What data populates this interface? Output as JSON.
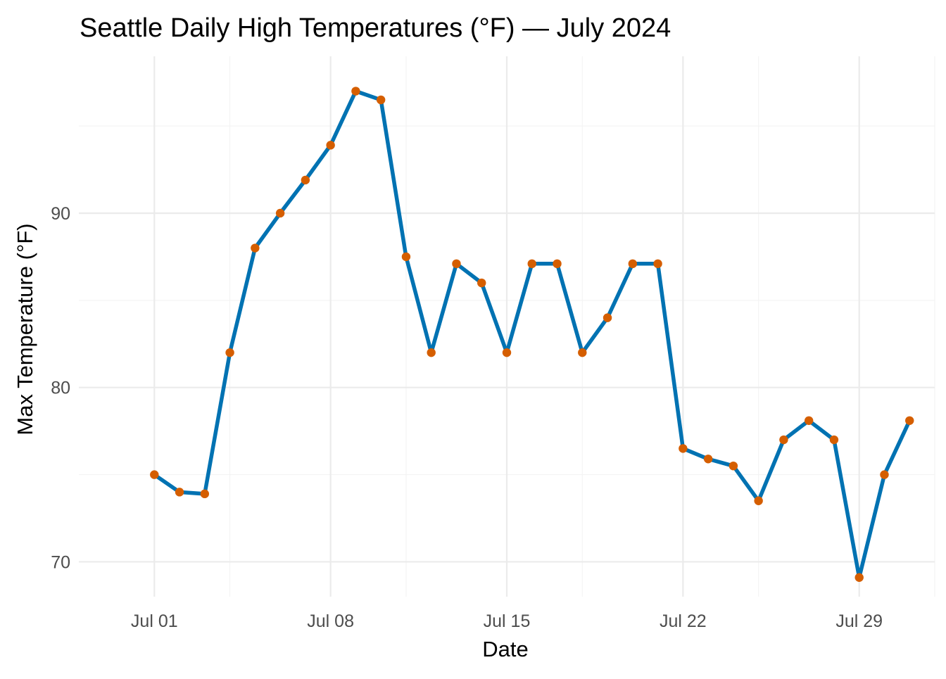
{
  "chart_data": {
    "type": "line",
    "title": "Seattle Daily High Temperatures (°F) — July 2024",
    "xlabel": "Date",
    "ylabel": "Max Temperature (°F)",
    "xlim": [
      "2024-06-28",
      "2024-08-01"
    ],
    "ylim": [
      68,
      99
    ],
    "x_ticks": [
      {
        "date": "2024-07-01",
        "label": "Jul 01"
      },
      {
        "date": "2024-07-08",
        "label": "Jul 08"
      },
      {
        "date": "2024-07-15",
        "label": "Jul 15"
      },
      {
        "date": "2024-07-22",
        "label": "Jul 22"
      },
      {
        "date": "2024-07-29",
        "label": "Jul 29"
      }
    ],
    "x_minor_ticks": [
      "2024-07-04",
      "2024-07-11",
      "2024-07-18",
      "2024-07-25",
      "2024-08-01"
    ],
    "y_ticks": [
      70,
      80,
      90
    ],
    "y_minor_ticks": [
      75,
      85,
      95
    ],
    "grid": true,
    "line_color": "#0072B2",
    "point_color": "#D55E00",
    "series": [
      {
        "x": [
          "2024-07-01",
          "2024-07-02",
          "2024-07-03",
          "2024-07-04",
          "2024-07-05",
          "2024-07-06",
          "2024-07-07",
          "2024-07-08",
          "2024-07-09",
          "2024-07-10",
          "2024-07-11",
          "2024-07-12",
          "2024-07-13",
          "2024-07-14",
          "2024-07-15",
          "2024-07-16",
          "2024-07-17",
          "2024-07-18",
          "2024-07-19",
          "2024-07-20",
          "2024-07-21",
          "2024-07-22",
          "2024-07-23",
          "2024-07-24",
          "2024-07-25",
          "2024-07-26",
          "2024-07-27",
          "2024-07-28",
          "2024-07-29",
          "2024-07-30",
          "2024-07-31"
        ],
        "values": [
          75.0,
          74.0,
          73.9,
          82.0,
          88.0,
          90.0,
          91.9,
          93.9,
          97.0,
          96.5,
          87.5,
          82.0,
          87.1,
          86.0,
          82.0,
          87.1,
          87.1,
          82.0,
          84.0,
          87.1,
          87.1,
          76.5,
          75.9,
          75.5,
          73.5,
          77.0,
          78.1,
          77.0,
          69.1,
          75.0,
          78.1
        ]
      }
    ]
  }
}
